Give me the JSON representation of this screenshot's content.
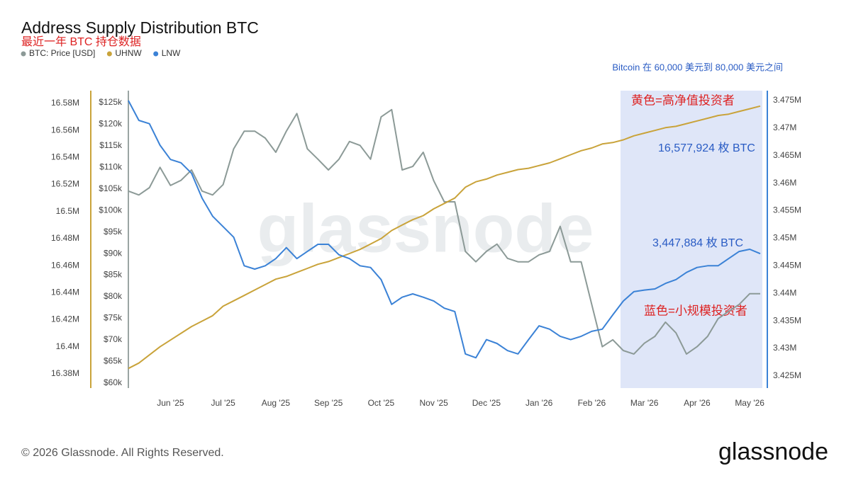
{
  "chart_data": {
    "type": "line",
    "title": "Address Supply Distribution BTC",
    "subtitle": "最近一年 BTC 持仓数据",
    "annotations": [
      "Bitcoin 在 60,000 美元到 80,000 美元之间",
      "黄色=高净值投资者",
      "16,577,924 枚 BTC",
      "3,447,884 枚 BTC",
      "蓝色=小规模投资者"
    ],
    "watermark": "glassnode",
    "categories": [
      null,
      null,
      null,
      null,
      "Jun '25",
      null,
      null,
      null,
      null,
      "Jul '25",
      null,
      null,
      null,
      null,
      "Aug '25",
      null,
      null,
      null,
      null,
      "Sep '25",
      null,
      null,
      null,
      null,
      "Oct '25",
      null,
      null,
      null,
      null,
      "Nov '25",
      null,
      null,
      null,
      null,
      "Dec '25",
      null,
      null,
      null,
      null,
      "Jan '26",
      null,
      null,
      null,
      null,
      "Feb '26",
      null,
      null,
      null,
      null,
      "Mar '26",
      null,
      null,
      null,
      null,
      "Apr '26",
      null,
      null,
      null,
      null,
      "May '26",
      null
    ],
    "series": [
      {
        "name": "BTC: Price [USD]",
        "color": "#8c9a97",
        "axis": "y",
        "values": [
          104500,
          103600,
          105300,
          110000,
          105800,
          107000,
          109400,
          104500,
          103600,
          106000,
          114300,
          118400,
          118400,
          116800,
          113500,
          118400,
          122500,
          114300,
          111900,
          109400,
          111900,
          116000,
          115100,
          111900,
          121700,
          123400,
          109400,
          110200,
          113500,
          106900,
          102000,
          102000,
          90500,
          88100,
          90500,
          92200,
          88900,
          88100,
          88100,
          89700,
          90500,
          96300,
          88100,
          88100,
          78200,
          68400,
          70000,
          67500,
          66700,
          69200,
          70800,
          74100,
          71600,
          66700,
          68400,
          70800,
          74900,
          76600,
          78200,
          80700,
          80700
        ]
      },
      {
        "name": "UHNW",
        "color": "#c9a33a",
        "axis": "y3",
        "values": [
          16384000,
          16388000,
          16394000,
          16400000,
          16405000,
          16410000,
          16415000,
          16419000,
          16423000,
          16430000,
          16434000,
          16438000,
          16442000,
          16446000,
          16450000,
          16452000,
          16455000,
          16458000,
          16461000,
          16463000,
          16466000,
          16469000,
          16472000,
          16476000,
          16480000,
          16486000,
          16490000,
          16494000,
          16497000,
          16502000,
          16506000,
          16510000,
          16518000,
          16522000,
          16524000,
          16527000,
          16529000,
          16531000,
          16532000,
          16534000,
          16536000,
          16539000,
          16542000,
          16545000,
          16547000,
          16550000,
          16551000,
          16553000,
          16556000,
          16558000,
          16560000,
          16562000,
          16563000,
          16565000,
          16567000,
          16569000,
          16571000,
          16572000,
          16574000,
          16576000,
          16578000
        ]
      },
      {
        "name": "LNW",
        "color": "#3b82d6",
        "axis": "y2",
        "values": [
          3475000,
          3471400,
          3470800,
          3466900,
          3464300,
          3463700,
          3461800,
          3457300,
          3454000,
          3452100,
          3450200,
          3445000,
          3444400,
          3445000,
          3446300,
          3448300,
          3446300,
          3447600,
          3448900,
          3448900,
          3447000,
          3446300,
          3445000,
          3444700,
          3442500,
          3438000,
          3439300,
          3439900,
          3439300,
          3438600,
          3437300,
          3436700,
          3429000,
          3428300,
          3431600,
          3430900,
          3429600,
          3429000,
          3431600,
          3434100,
          3433500,
          3432200,
          3431600,
          3432200,
          3433100,
          3433500,
          3436100,
          3438600,
          3440300,
          3440600,
          3440800,
          3441800,
          3442500,
          3443800,
          3444700,
          3445000,
          3445000,
          3446300,
          3447600,
          3448000,
          3447200
        ]
      }
    ],
    "ylim": [
      58800,
      127800
    ],
    "yticks": [
      {
        "value": 60000,
        "label": "$60k"
      },
      {
        "value": 65000,
        "label": "$65k"
      },
      {
        "value": 70000,
        "label": "$70k"
      },
      {
        "value": 75000,
        "label": "$75k"
      },
      {
        "value": 80000,
        "label": "$80k"
      },
      {
        "value": 85000,
        "label": "$85k"
      },
      {
        "value": 90000,
        "label": "$90k"
      },
      {
        "value": 95000,
        "label": "$95k"
      },
      {
        "value": 100000,
        "label": "$100k"
      },
      {
        "value": 105000,
        "label": "$105k"
      },
      {
        "value": 110000,
        "label": "$110k"
      },
      {
        "value": 115000,
        "label": "$115k"
      },
      {
        "value": 120000,
        "label": "$120k"
      },
      {
        "value": 125000,
        "label": "$125k"
      }
    ],
    "y2lim": [
      3422800,
      3476800
    ],
    "y2ticks": [
      {
        "value": 3425000,
        "label": "3.425M"
      },
      {
        "value": 3430000,
        "label": "3.43M"
      },
      {
        "value": 3435000,
        "label": "3.435M"
      },
      {
        "value": 3440000,
        "label": "3.44M"
      },
      {
        "value": 3445000,
        "label": "3.445M"
      },
      {
        "value": 3450000,
        "label": "3.45M"
      },
      {
        "value": 3455000,
        "label": "3.455M"
      },
      {
        "value": 3460000,
        "label": "3.46M"
      },
      {
        "value": 3465000,
        "label": "3.465M"
      },
      {
        "value": 3470000,
        "label": "3.47M"
      },
      {
        "value": 3475000,
        "label": "3.475M"
      }
    ],
    "y3lim": [
      16369500,
      16589400
    ],
    "y3ticks": [
      {
        "value": 16380000,
        "label": "16.38M"
      },
      {
        "value": 16400000,
        "label": "16.4M"
      },
      {
        "value": 16420000,
        "label": "16.42M"
      },
      {
        "value": 16440000,
        "label": "16.44M"
      },
      {
        "value": 16460000,
        "label": "16.46M"
      },
      {
        "value": 16480000,
        "label": "16.48M"
      },
      {
        "value": 16500000,
        "label": "16.5M"
      },
      {
        "value": 16520000,
        "label": "16.52M"
      },
      {
        "value": 16540000,
        "label": "16.54M"
      },
      {
        "value": 16560000,
        "label": "16.56M"
      },
      {
        "value": 16580000,
        "label": "16.58M"
      }
    ],
    "grid": false
  },
  "footer": {
    "copyright": "© 2026 Glassnode. All Rights Reserved.",
    "logo": "glassnode"
  }
}
